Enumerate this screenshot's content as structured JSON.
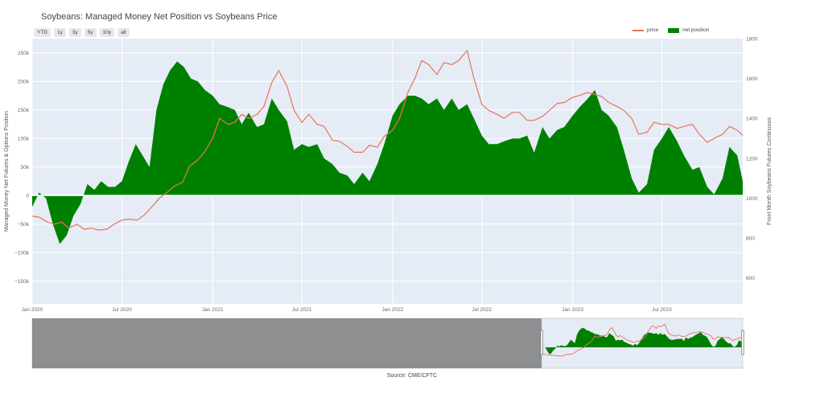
{
  "chart_data": {
    "type": "area",
    "title": "Soybeans: Managed Money Net Position vs Soybeans Price",
    "source": "Source: CME/CFTC",
    "ylabel_left": "Managed Money Net Futures & Options Position",
    "ylabel_right": "Front Month Soybeans Futures Continuous",
    "y_left_range": [
      -190000,
      275000
    ],
    "y_right_range": [
      470,
      1800
    ],
    "y_left_ticks": [
      {
        "value": 250000,
        "label": "250k"
      },
      {
        "value": 200000,
        "label": "200k"
      },
      {
        "value": 150000,
        "label": "150k"
      },
      {
        "value": 100000,
        "label": "100k"
      },
      {
        "value": 50000,
        "label": "50k"
      },
      {
        "value": 0,
        "label": "0"
      },
      {
        "value": -50000,
        "label": "−50k"
      },
      {
        "value": -100000,
        "label": "−100k"
      },
      {
        "value": -150000,
        "label": "−150k"
      }
    ],
    "y_right_ticks": [
      {
        "value": 1800,
        "label": "1800"
      },
      {
        "value": 1600,
        "label": "1600"
      },
      {
        "value": 1400,
        "label": "1400"
      },
      {
        "value": 1200,
        "label": "1200"
      },
      {
        "value": 1000,
        "label": "1000"
      },
      {
        "value": 800,
        "label": "800"
      },
      {
        "value": 600,
        "label": "600"
      }
    ],
    "x_ticks": [
      {
        "value": "2020-01-01",
        "label": "Jan 2020"
      },
      {
        "value": "2020-07-01",
        "label": "Jul 2020"
      },
      {
        "value": "2021-01-01",
        "label": "Jan 2021"
      },
      {
        "value": "2021-07-01",
        "label": "Jul 2021"
      },
      {
        "value": "2022-01-01",
        "label": "Jan 2022"
      },
      {
        "value": "2022-07-01",
        "label": "Jul 2022"
      },
      {
        "value": "2023-01-01",
        "label": "Jan 2023"
      },
      {
        "value": "2023-07-01",
        "label": "Jul 2023"
      }
    ],
    "x_range": [
      "2020-01-01",
      "2023-12-12"
    ],
    "legend": "top-right",
    "grid": true,
    "series": [
      {
        "name": "price",
        "type": "line",
        "axis": "right",
        "color": "#e8735a",
        "points": [
          [
            "2020-01-01",
            910
          ],
          [
            "2020-01-15",
            905
          ],
          [
            "2020-02-01",
            880
          ],
          [
            "2020-02-15",
            870
          ],
          [
            "2020-03-01",
            880
          ],
          [
            "2020-03-15",
            850
          ],
          [
            "2020-04-01",
            870
          ],
          [
            "2020-04-15",
            845
          ],
          [
            "2020-05-01",
            850
          ],
          [
            "2020-05-15",
            840
          ],
          [
            "2020-06-01",
            845
          ],
          [
            "2020-06-15",
            870
          ],
          [
            "2020-07-01",
            890
          ],
          [
            "2020-07-15",
            895
          ],
          [
            "2020-08-01",
            890
          ],
          [
            "2020-08-15",
            915
          ],
          [
            "2020-09-01",
            960
          ],
          [
            "2020-09-15",
            1000
          ],
          [
            "2020-10-01",
            1030
          ],
          [
            "2020-10-15",
            1060
          ],
          [
            "2020-11-01",
            1080
          ],
          [
            "2020-11-15",
            1160
          ],
          [
            "2020-12-01",
            1190
          ],
          [
            "2020-12-15",
            1230
          ],
          [
            "2021-01-01",
            1300
          ],
          [
            "2021-01-15",
            1400
          ],
          [
            "2021-02-01",
            1370
          ],
          [
            "2021-02-15",
            1380
          ],
          [
            "2021-03-01",
            1420
          ],
          [
            "2021-03-15",
            1400
          ],
          [
            "2021-04-01",
            1420
          ],
          [
            "2021-04-15",
            1460
          ],
          [
            "2021-05-01",
            1580
          ],
          [
            "2021-05-15",
            1640
          ],
          [
            "2021-06-01",
            1560
          ],
          [
            "2021-06-15",
            1440
          ],
          [
            "2021-07-01",
            1380
          ],
          [
            "2021-07-15",
            1420
          ],
          [
            "2021-08-01",
            1370
          ],
          [
            "2021-08-15",
            1360
          ],
          [
            "2021-09-01",
            1290
          ],
          [
            "2021-09-15",
            1285
          ],
          [
            "2021-10-01",
            1260
          ],
          [
            "2021-10-15",
            1230
          ],
          [
            "2021-11-01",
            1230
          ],
          [
            "2021-11-15",
            1265
          ],
          [
            "2021-12-01",
            1255
          ],
          [
            "2021-12-15",
            1310
          ],
          [
            "2022-01-01",
            1340
          ],
          [
            "2022-01-15",
            1400
          ],
          [
            "2022-02-01",
            1530
          ],
          [
            "2022-02-15",
            1600
          ],
          [
            "2022-03-01",
            1690
          ],
          [
            "2022-03-15",
            1670
          ],
          [
            "2022-04-01",
            1620
          ],
          [
            "2022-04-15",
            1680
          ],
          [
            "2022-05-01",
            1670
          ],
          [
            "2022-05-15",
            1690
          ],
          [
            "2022-06-01",
            1740
          ],
          [
            "2022-06-15",
            1600
          ],
          [
            "2022-07-01",
            1470
          ],
          [
            "2022-07-15",
            1440
          ],
          [
            "2022-08-01",
            1420
          ],
          [
            "2022-08-15",
            1400
          ],
          [
            "2022-09-01",
            1430
          ],
          [
            "2022-09-15",
            1430
          ],
          [
            "2022-10-01",
            1390
          ],
          [
            "2022-10-15",
            1390
          ],
          [
            "2022-11-01",
            1410
          ],
          [
            "2022-11-15",
            1440
          ],
          [
            "2022-12-01",
            1475
          ],
          [
            "2022-12-15",
            1480
          ],
          [
            "2023-01-01",
            1505
          ],
          [
            "2023-01-15",
            1515
          ],
          [
            "2023-02-01",
            1530
          ],
          [
            "2023-02-15",
            1520
          ],
          [
            "2023-03-01",
            1510
          ],
          [
            "2023-03-15",
            1480
          ],
          [
            "2023-04-01",
            1460
          ],
          [
            "2023-04-15",
            1440
          ],
          [
            "2023-05-01",
            1400
          ],
          [
            "2023-05-15",
            1320
          ],
          [
            "2023-06-01",
            1330
          ],
          [
            "2023-06-15",
            1380
          ],
          [
            "2023-07-01",
            1370
          ],
          [
            "2023-07-15",
            1370
          ],
          [
            "2023-08-01",
            1350
          ],
          [
            "2023-08-15",
            1360
          ],
          [
            "2023-09-01",
            1370
          ],
          [
            "2023-09-15",
            1320
          ],
          [
            "2023-10-01",
            1280
          ],
          [
            "2023-10-15",
            1300
          ],
          [
            "2023-11-01",
            1320
          ],
          [
            "2023-11-15",
            1360
          ],
          [
            "2023-12-01",
            1340
          ],
          [
            "2023-12-12",
            1315
          ]
        ]
      },
      {
        "name": "net position",
        "type": "area",
        "axis": "left",
        "color": "#008000",
        "points": [
          [
            "2020-01-01",
            -20000
          ],
          [
            "2020-01-15",
            5000
          ],
          [
            "2020-01-29",
            -5000
          ],
          [
            "2020-02-12",
            -50000
          ],
          [
            "2020-02-26",
            -85000
          ],
          [
            "2020-03-11",
            -70000
          ],
          [
            "2020-03-25",
            -35000
          ],
          [
            "2020-04-08",
            -15000
          ],
          [
            "2020-04-22",
            20000
          ],
          [
            "2020-05-06",
            10000
          ],
          [
            "2020-05-20",
            25000
          ],
          [
            "2020-06-03",
            15000
          ],
          [
            "2020-06-17",
            15000
          ],
          [
            "2020-07-01",
            25000
          ],
          [
            "2020-07-15",
            60000
          ],
          [
            "2020-07-29",
            90000
          ],
          [
            "2020-08-12",
            70000
          ],
          [
            "2020-08-26",
            50000
          ],
          [
            "2020-09-09",
            150000
          ],
          [
            "2020-09-23",
            195000
          ],
          [
            "2020-10-07",
            220000
          ],
          [
            "2020-10-21",
            235000
          ],
          [
            "2020-11-04",
            225000
          ],
          [
            "2020-11-18",
            205000
          ],
          [
            "2020-12-02",
            200000
          ],
          [
            "2020-12-16",
            185000
          ],
          [
            "2021-01-01",
            175000
          ],
          [
            "2021-01-15",
            160000
          ],
          [
            "2021-02-01",
            155000
          ],
          [
            "2021-02-15",
            150000
          ],
          [
            "2021-03-01",
            125000
          ],
          [
            "2021-03-15",
            145000
          ],
          [
            "2021-04-01",
            120000
          ],
          [
            "2021-04-15",
            125000
          ],
          [
            "2021-05-01",
            170000
          ],
          [
            "2021-05-15",
            150000
          ],
          [
            "2021-06-01",
            130000
          ],
          [
            "2021-06-15",
            80000
          ],
          [
            "2021-07-01",
            90000
          ],
          [
            "2021-07-15",
            85000
          ],
          [
            "2021-08-01",
            90000
          ],
          [
            "2021-08-15",
            65000
          ],
          [
            "2021-09-01",
            55000
          ],
          [
            "2021-09-15",
            40000
          ],
          [
            "2021-10-01",
            35000
          ],
          [
            "2021-10-15",
            20000
          ],
          [
            "2021-11-01",
            40000
          ],
          [
            "2021-11-15",
            25000
          ],
          [
            "2021-12-01",
            55000
          ],
          [
            "2021-12-15",
            90000
          ],
          [
            "2022-01-01",
            140000
          ],
          [
            "2022-01-15",
            160000
          ],
          [
            "2022-02-01",
            175000
          ],
          [
            "2022-02-15",
            175000
          ],
          [
            "2022-03-01",
            170000
          ],
          [
            "2022-03-15",
            160000
          ],
          [
            "2022-04-01",
            170000
          ],
          [
            "2022-04-15",
            150000
          ],
          [
            "2022-05-01",
            170000
          ],
          [
            "2022-05-15",
            150000
          ],
          [
            "2022-06-01",
            160000
          ],
          [
            "2022-06-15",
            135000
          ],
          [
            "2022-07-01",
            105000
          ],
          [
            "2022-07-15",
            90000
          ],
          [
            "2022-08-01",
            90000
          ],
          [
            "2022-08-15",
            95000
          ],
          [
            "2022-09-01",
            100000
          ],
          [
            "2022-09-15",
            100000
          ],
          [
            "2022-10-01",
            105000
          ],
          [
            "2022-10-15",
            75000
          ],
          [
            "2022-11-01",
            120000
          ],
          [
            "2022-11-15",
            100000
          ],
          [
            "2022-12-01",
            115000
          ],
          [
            "2022-12-15",
            120000
          ],
          [
            "2023-01-01",
            140000
          ],
          [
            "2023-01-15",
            155000
          ],
          [
            "2023-02-01",
            170000
          ],
          [
            "2023-02-15",
            185000
          ],
          [
            "2023-03-01",
            150000
          ],
          [
            "2023-03-15",
            140000
          ],
          [
            "2023-04-01",
            120000
          ],
          [
            "2023-04-15",
            80000
          ],
          [
            "2023-05-01",
            30000
          ],
          [
            "2023-05-15",
            5000
          ],
          [
            "2023-06-01",
            20000
          ],
          [
            "2023-06-15",
            80000
          ],
          [
            "2023-07-01",
            100000
          ],
          [
            "2023-07-15",
            120000
          ],
          [
            "2023-08-01",
            95000
          ],
          [
            "2023-08-15",
            70000
          ],
          [
            "2023-09-01",
            45000
          ],
          [
            "2023-09-15",
            50000
          ],
          [
            "2023-10-01",
            15000
          ],
          [
            "2023-10-15",
            2000
          ],
          [
            "2023-11-01",
            30000
          ],
          [
            "2023-11-15",
            85000
          ],
          [
            "2023-12-01",
            70000
          ],
          [
            "2023-12-12",
            25000
          ]
        ]
      }
    ],
    "range_slider": {
      "x_range": [
        "2010-01-01",
        "2023-12-12"
      ],
      "selected": [
        "2020-01-01",
        "2023-12-12"
      ]
    }
  },
  "range_buttons": [
    "YTD",
    "1y",
    "3y",
    "5y",
    "10y",
    "all"
  ],
  "colors": {
    "plot_bg": "#e5ecf6",
    "grid": "#ffffff",
    "price": "#e8735a",
    "net_position": "#008000",
    "slider_mask": "#7f7f7f"
  }
}
